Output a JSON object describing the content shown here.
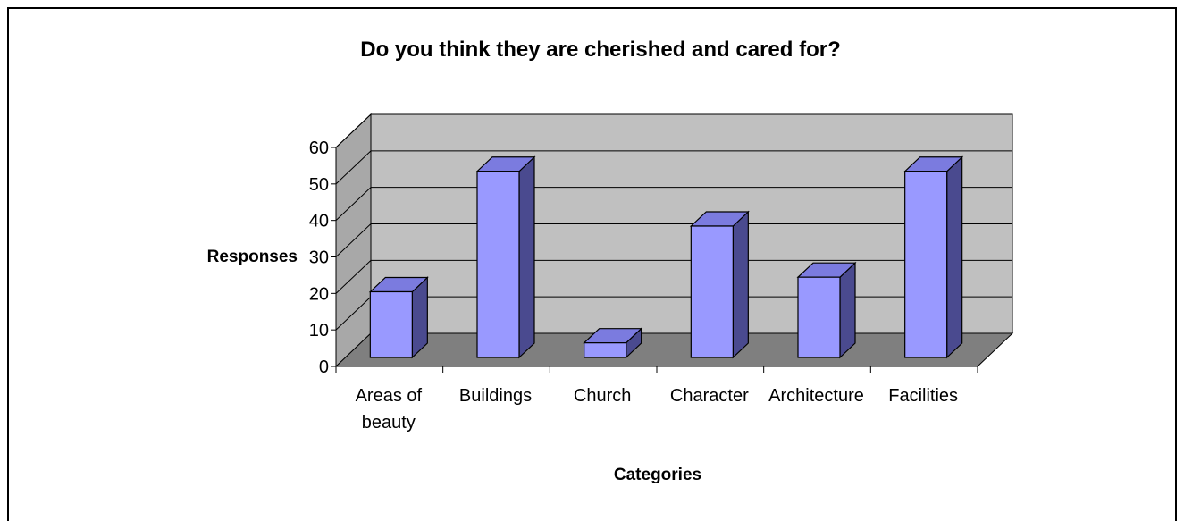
{
  "chart_data": {
    "type": "bar",
    "title": "Do you think they are cherished and cared for?",
    "xlabel": "Categories",
    "ylabel": "Responses",
    "categories": [
      [
        "Areas of",
        "beauty"
      ],
      [
        "Buildings"
      ],
      [
        "Church"
      ],
      [
        "Character"
      ],
      [
        "Architecture"
      ],
      [
        "Facilities"
      ]
    ],
    "values": [
      18,
      51,
      4,
      36,
      22,
      51
    ],
    "ylim": [
      0,
      60
    ],
    "yticks": [
      "0",
      "10",
      "20",
      "30",
      "40",
      "50",
      "60"
    ],
    "grid": true,
    "style": "3d",
    "colors": {
      "bar_front": "#9999ff",
      "bar_top": "#7b7bdf",
      "bar_side": "#4a4a8f",
      "back_wall": "#c0c0c0",
      "side_wall": "#a8a8a8",
      "floor": "#7f7f7f"
    }
  }
}
